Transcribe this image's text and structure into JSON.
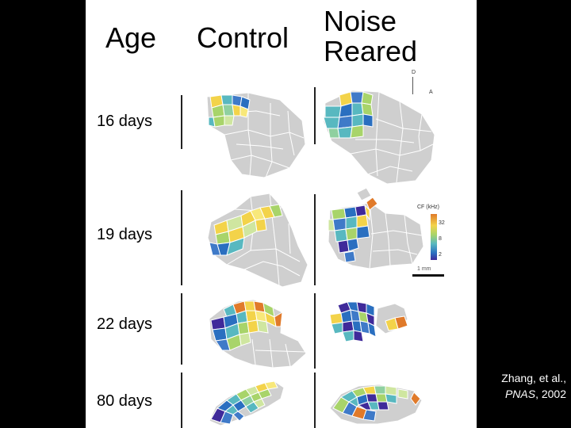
{
  "headers": {
    "age": "Age",
    "control": "Control",
    "noise_line1": "Noise",
    "noise_line2": "Reared"
  },
  "rows": [
    {
      "label": "16 days"
    },
    {
      "label": "19 days"
    },
    {
      "label": "22 days"
    },
    {
      "label": "80 days"
    }
  ],
  "orientation": {
    "dorsal": "D",
    "anterior": "A"
  },
  "legend": {
    "title": "CF (kHz)",
    "ticks": [
      "32",
      "8",
      "2"
    ]
  },
  "scale_bar": {
    "label": "1 mm"
  },
  "citation": {
    "authors": "Zhang, et al.,",
    "journal": "PNAS",
    "year": ", 2002"
  },
  "colors": {
    "background": "#000000",
    "panel": "#ffffff",
    "unresponsive_site": "#cfcfcf",
    "cf_scale": [
      "#3f2a9a",
      "#2a6fc0",
      "#58b8c0",
      "#a8d46a",
      "#f3d34a",
      "#e07a2a"
    ]
  }
}
